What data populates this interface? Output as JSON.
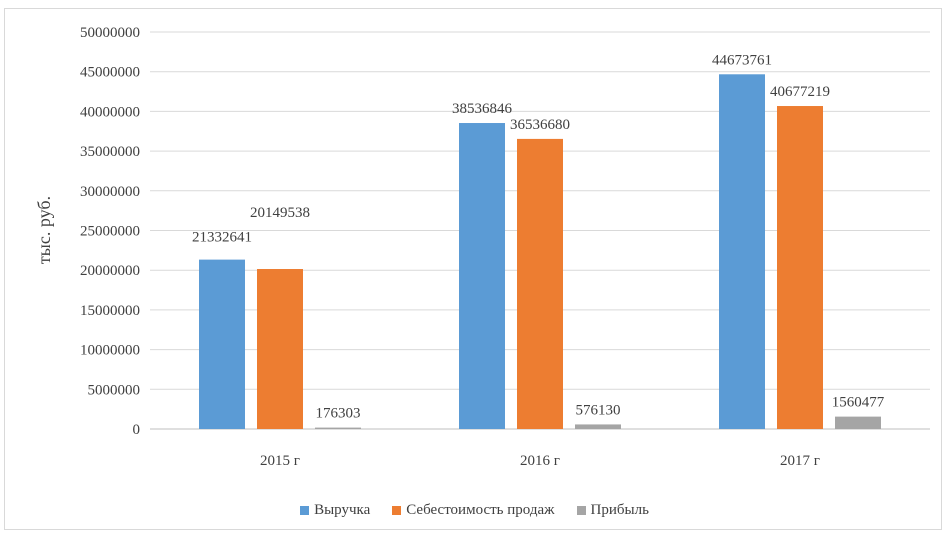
{
  "chart_data": {
    "type": "bar",
    "ylabel": "тыс. руб.",
    "categories": [
      "2015 г",
      "2016 г",
      "2017 г"
    ],
    "ylim": [
      0,
      50000000
    ],
    "yticks": [
      "0",
      "5000000",
      "10000000",
      "15000000",
      "20000000",
      "25000000",
      "30000000",
      "35000000",
      "40000000",
      "45000000",
      "50000000"
    ],
    "grid": true,
    "legend_position": "bottom",
    "series": [
      {
        "name": "Выручка",
        "color": "#5b9bd5",
        "values": [
          21332641,
          38536846,
          44673761
        ],
        "labels": [
          "21332641",
          "38536846",
          "44673761"
        ]
      },
      {
        "name": "Себестоимость продаж",
        "color": "#ed7d31",
        "values": [
          20149538,
          36536680,
          40677219
        ],
        "labels": [
          "20149538",
          "36536680",
          "40677219"
        ]
      },
      {
        "name": "Прибыль",
        "color": "#a5a5a5",
        "values": [
          176303,
          576130,
          1560477
        ],
        "labels": [
          "176303",
          "576130",
          "1560477"
        ]
      }
    ]
  }
}
